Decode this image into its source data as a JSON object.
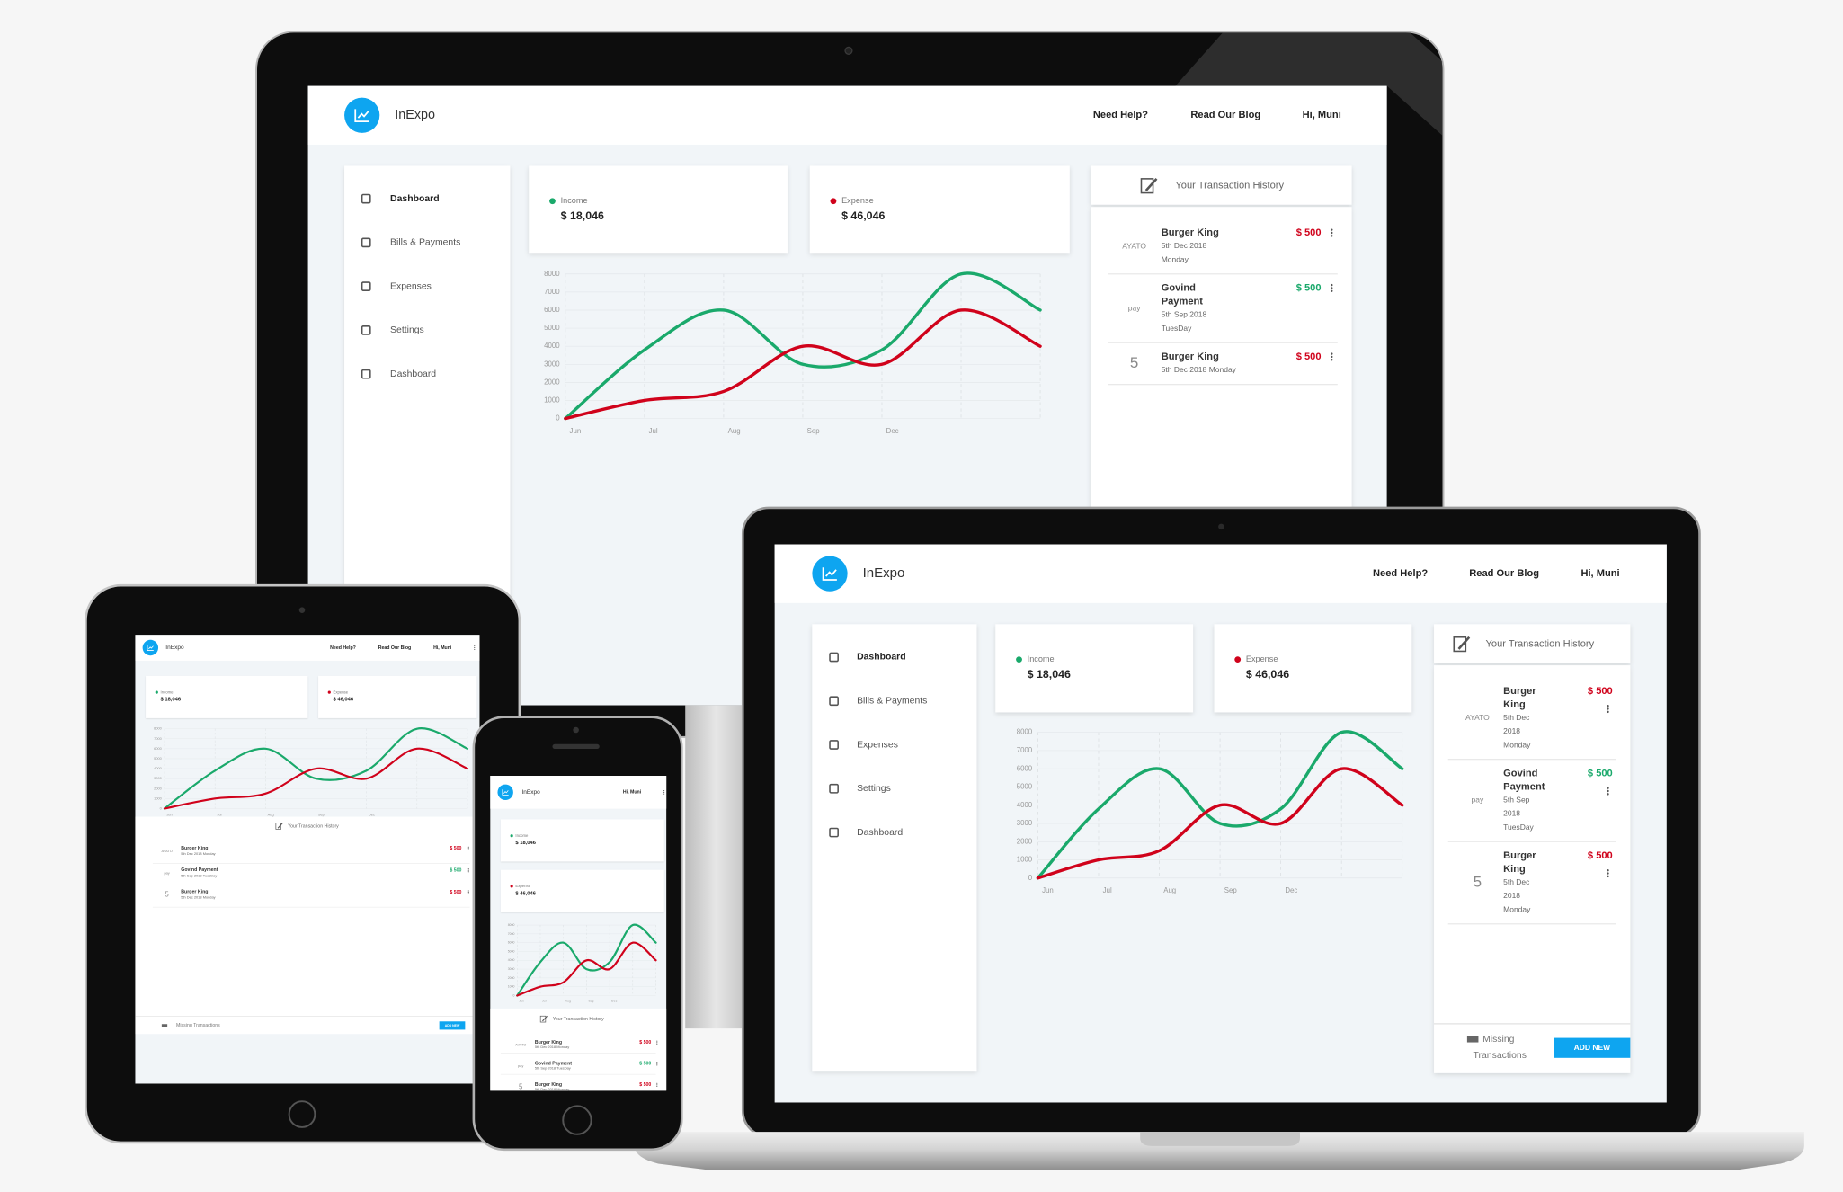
{
  "header": {
    "brand": "InExpo",
    "nav": [
      "Need Help?",
      "Read Our Blog",
      "Hi, Muni"
    ]
  },
  "sidebar": {
    "items": [
      "Dashboard",
      "Bills & Payments",
      "Expenses",
      "Settings",
      "Dashboard"
    ]
  },
  "totals": [
    "$ 18,046",
    "$ 46,046"
  ],
  "chart_data": {
    "type": "line",
    "categories": [
      "Jun",
      "Jul",
      "Aug",
      "Sep",
      "Dec",
      null,
      null
    ],
    "series": [
      {
        "name": "Income",
        "color": "#1aa96b",
        "values": [
          0,
          3800,
          6000,
          3000,
          3800,
          8000,
          6000
        ]
      },
      {
        "name": "Expense",
        "color": "#d0021b",
        "values": [
          0,
          1000,
          1500,
          4000,
          3000,
          6000,
          4000
        ]
      }
    ],
    "ylim": [
      0,
      8000
    ],
    "yticks": [
      0,
      1000,
      2000,
      3000,
      4000,
      5000,
      6000,
      7000,
      8000
    ],
    "grid": true
  },
  "transactions": {
    "title": "Your Transaction History",
    "items": [
      {
        "logo": "AYATO",
        "name": "Burger King",
        "date": "5th Dec 2018",
        "day": "Monday",
        "amount": "$ 500",
        "color": "#d0021b"
      },
      {
        "logo": "pay",
        "name": "Govind Payment",
        "date": "5th Sep 2018",
        "day": "TuesDay",
        "amount": "$ 500",
        "color": "#1aa96b"
      },
      {
        "logo": "5",
        "name": "Burger King",
        "date": "5th Dec 2018",
        "day": "Monday",
        "amount": "$ 500",
        "color": "#d0021b"
      }
    ]
  },
  "footer": {
    "missing": "Missing Transactions",
    "button": "ADD NEW"
  }
}
